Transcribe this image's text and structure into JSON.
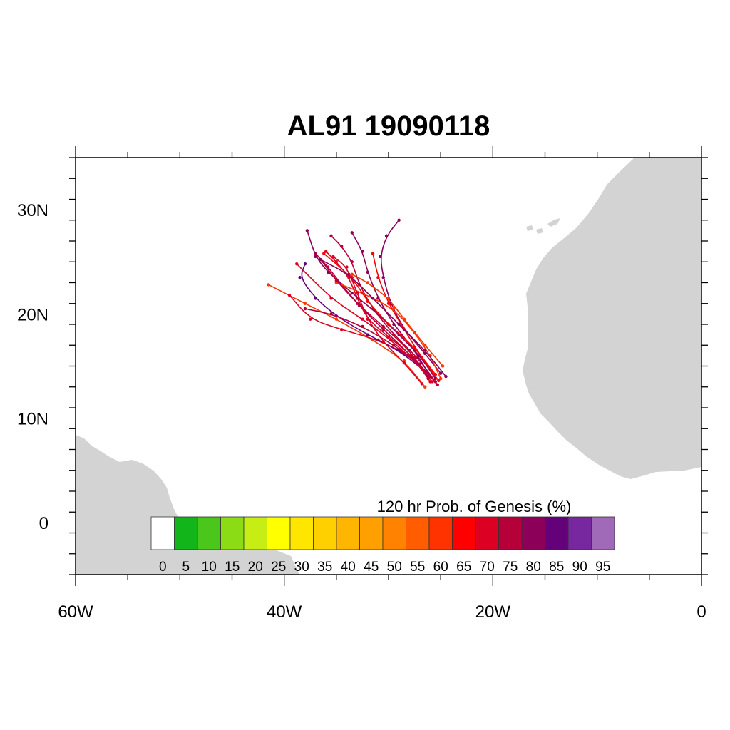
{
  "title": "AL91 19090118",
  "map": {
    "lon_range": [
      -60,
      0
    ],
    "lat_range": [
      -5,
      35
    ],
    "land_color": "#d3d3d3",
    "ocean_color": "#ffffff",
    "x_ticks": [
      {
        "value": -60,
        "label": "60W"
      },
      {
        "value": -40,
        "label": "40W"
      },
      {
        "value": -20,
        "label": "20W"
      },
      {
        "value": 0,
        "label": "0"
      }
    ],
    "y_ticks": [
      {
        "value": 0,
        "label": "0"
      },
      {
        "value": 10,
        "label": "10N"
      },
      {
        "value": 20,
        "label": "20N"
      },
      {
        "value": 30,
        "label": "30N"
      }
    ]
  },
  "colorbar": {
    "title": "120 hr Prob. of Genesis (%)",
    "labels": [
      "0",
      "5",
      "10",
      "15",
      "20",
      "25",
      "30",
      "35",
      "40",
      "45",
      "50",
      "55",
      "60",
      "65",
      "70",
      "75",
      "80",
      "85",
      "90",
      "95"
    ],
    "colors": [
      "#ffffff",
      "#12b51a",
      "#4bc61a",
      "#8bdc14",
      "#c6ee14",
      "#ffff00",
      "#ffe600",
      "#ffd000",
      "#ffb600",
      "#ffa000",
      "#ff8200",
      "#ff5d00",
      "#ff3300",
      "#ff0000",
      "#dc0022",
      "#b6003a",
      "#8c005a",
      "#64007a",
      "#78289e",
      "#a06ab8"
    ]
  },
  "tracks": [
    {
      "color": "#dc0022",
      "points": [
        [
          -26.0,
          13.5
        ],
        [
          -27.5,
          15.8
        ],
        [
          -30.0,
          17.8
        ],
        [
          -32.0,
          19.5
        ],
        [
          -33.0,
          21.5
        ],
        [
          -33.8,
          23.5
        ],
        [
          -35.0,
          25.0
        ],
        [
          -36.0,
          26.0
        ]
      ]
    },
    {
      "color": "#b6003a",
      "points": [
        [
          -26.2,
          13.8
        ],
        [
          -27.8,
          16.0
        ],
        [
          -30.5,
          18.5
        ],
        [
          -32.8,
          20.8
        ],
        [
          -34.5,
          22.8
        ],
        [
          -35.8,
          24.5
        ],
        [
          -37.0,
          25.8
        ]
      ]
    },
    {
      "color": "#8c005a",
      "points": [
        [
          -25.0,
          14.3
        ],
        [
          -26.5,
          16.2
        ],
        [
          -28.5,
          18.5
        ],
        [
          -29.8,
          21.0
        ],
        [
          -30.5,
          23.5
        ],
        [
          -30.8,
          25.5
        ],
        [
          -30.2,
          27.5
        ],
        [
          -29.0,
          29.0
        ]
      ]
    },
    {
      "color": "#ff3300",
      "points": [
        [
          -26.5,
          13.0
        ],
        [
          -28.5,
          15.5
        ],
        [
          -31.5,
          17.5
        ],
        [
          -35.0,
          19.5
        ],
        [
          -38.0,
          21.0
        ],
        [
          -41.5,
          22.8
        ]
      ]
    },
    {
      "color": "#dc0022",
      "points": [
        [
          -26.0,
          14.0
        ],
        [
          -28.0,
          16.0
        ],
        [
          -31.0,
          17.5
        ],
        [
          -34.5,
          18.5
        ],
        [
          -37.5,
          19.5
        ],
        [
          -39.5,
          21.8
        ]
      ]
    },
    {
      "color": "#8c005a",
      "points": [
        [
          -25.5,
          13.8
        ],
        [
          -27.0,
          16.0
        ],
        [
          -29.0,
          18.0
        ],
        [
          -31.0,
          20.0
        ],
        [
          -33.5,
          22.0
        ],
        [
          -35.8,
          24.0
        ],
        [
          -37.0,
          25.5
        ],
        [
          -37.8,
          28.0
        ]
      ]
    },
    {
      "color": "#b6003a",
      "points": [
        [
          -25.5,
          13.5
        ],
        [
          -27.2,
          15.8
        ],
        [
          -29.5,
          18.0
        ],
        [
          -31.5,
          20.5
        ],
        [
          -32.8,
          22.8
        ],
        [
          -33.5,
          25.0
        ],
        [
          -34.5,
          26.5
        ],
        [
          -35.5,
          27.5
        ]
      ]
    },
    {
      "color": "#8c005a",
      "points": [
        [
          -26.0,
          14.0
        ],
        [
          -27.5,
          16.5
        ],
        [
          -29.5,
          19.0
        ],
        [
          -31.0,
          21.5
        ],
        [
          -32.0,
          24.0
        ],
        [
          -32.5,
          26.0
        ],
        [
          -33.5,
          27.8
        ]
      ]
    },
    {
      "color": "#ff0000",
      "points": [
        [
          -25.2,
          13.6
        ],
        [
          -26.8,
          15.8
        ],
        [
          -28.5,
          18.5
        ],
        [
          -30.0,
          21.0
        ],
        [
          -31.0,
          23.5
        ],
        [
          -31.5,
          25.8
        ]
      ]
    },
    {
      "color": "#ff3300",
      "points": [
        [
          -25.0,
          13.8
        ],
        [
          -26.0,
          16.0
        ],
        [
          -27.5,
          18.2
        ],
        [
          -29.5,
          20.5
        ],
        [
          -32.5,
          22.0
        ],
        [
          -35.0,
          23.0
        ]
      ]
    },
    {
      "color": "#64007a",
      "points": [
        [
          -26.5,
          14.5
        ],
        [
          -29.0,
          16.5
        ],
        [
          -32.0,
          18.0
        ],
        [
          -35.0,
          19.8
        ],
        [
          -37.0,
          21.5
        ],
        [
          -38.5,
          23.5
        ],
        [
          -38.0,
          24.8
        ]
      ]
    },
    {
      "color": "#dc0022",
      "points": [
        [
          -25.8,
          13.5
        ],
        [
          -27.5,
          15.5
        ],
        [
          -29.8,
          17.5
        ],
        [
          -32.5,
          19.5
        ],
        [
          -35.5,
          21.5
        ],
        [
          -38.8,
          24.8
        ]
      ]
    },
    {
      "color": "#b6003a",
      "points": [
        [
          -26.2,
          14.0
        ],
        [
          -28.0,
          16.5
        ],
        [
          -30.5,
          18.8
        ],
        [
          -33.0,
          21.0
        ],
        [
          -35.0,
          23.2
        ],
        [
          -36.5,
          25.2
        ]
      ]
    },
    {
      "color": "#ff0000",
      "points": [
        [
          -25.5,
          14.2
        ],
        [
          -27.5,
          16.8
        ],
        [
          -30.0,
          19.0
        ],
        [
          -32.0,
          21.2
        ],
        [
          -33.5,
          23.5
        ],
        [
          -36.2,
          25.8
        ]
      ]
    },
    {
      "color": "#8c005a",
      "points": [
        [
          -24.5,
          14.0
        ],
        [
          -26.5,
          16.5
        ],
        [
          -29.0,
          19.0
        ],
        [
          -31.5,
          21.5
        ],
        [
          -33.8,
          23.8
        ],
        [
          -36.5,
          25.2
        ]
      ]
    },
    {
      "color": "#dc0022",
      "points": [
        [
          -26.8,
          13.3
        ],
        [
          -28.5,
          15.3
        ],
        [
          -30.5,
          17.3
        ],
        [
          -32.0,
          19.5
        ],
        [
          -33.0,
          22.0
        ],
        [
          -34.0,
          24.5
        ],
        [
          -35.3,
          25.5
        ]
      ]
    },
    {
      "color": "#ff3300",
      "points": [
        [
          -24.8,
          15.0
        ],
        [
          -26.5,
          17.0
        ],
        [
          -28.5,
          19.5
        ],
        [
          -30.0,
          21.5
        ],
        [
          -32.0,
          23.0
        ],
        [
          -33.5,
          23.8
        ]
      ]
    },
    {
      "color": "#b6003a",
      "points": [
        [
          -25.3,
          13.2
        ],
        [
          -27.0,
          15.2
        ],
        [
          -29.5,
          17.0
        ],
        [
          -32.5,
          18.8
        ],
        [
          -35.5,
          20.0
        ],
        [
          -38.0,
          20.5
        ]
      ]
    }
  ]
}
